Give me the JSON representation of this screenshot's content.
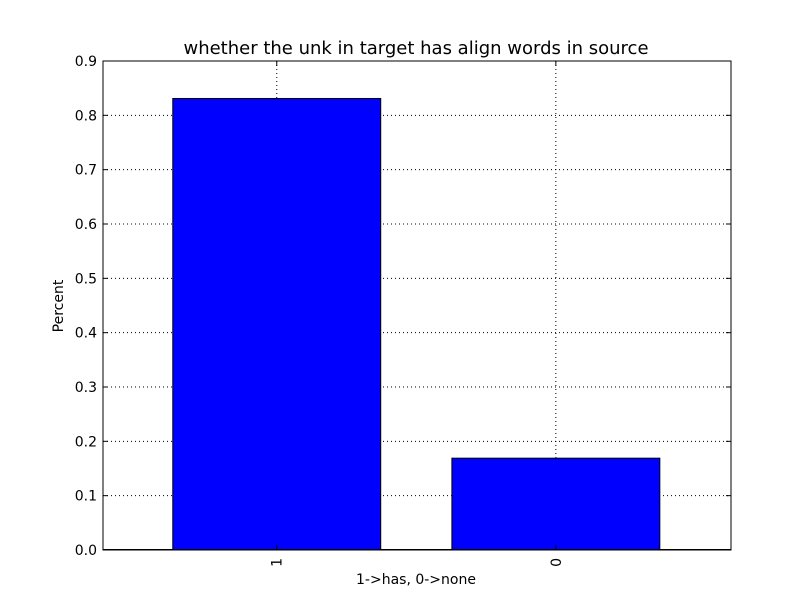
{
  "chart_data": {
    "type": "bar",
    "title": "whether the unk in target has align words in source",
    "xlabel": "1->has, 0->none",
    "ylabel": "Percent",
    "categories": [
      "1",
      "0"
    ],
    "values": [
      0.831,
      0.169
    ],
    "ylim": [
      0,
      0.9
    ],
    "yticks": [
      "0.0",
      "0.1",
      "0.2",
      "0.3",
      "0.4",
      "0.5",
      "0.6",
      "0.7",
      "0.8",
      "0.9"
    ],
    "bar_color": "#0000ff",
    "grid": true,
    "legend": "none"
  }
}
